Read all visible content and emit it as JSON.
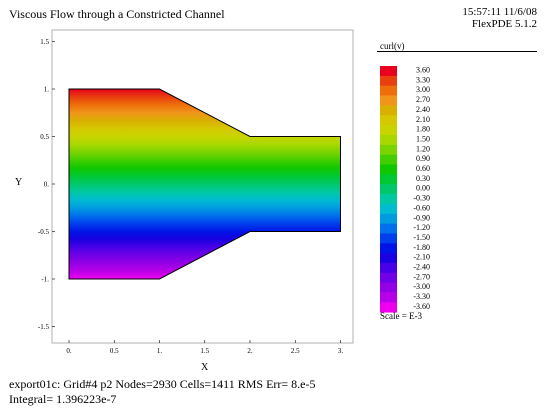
{
  "header": {
    "title": "Viscous Flow through a Constricted Channel",
    "timestamp": "15:57:11 11/6/08",
    "version": "FlexPDE 5.1.2"
  },
  "footer": {
    "line1": "export01c:  Grid#4  p2  Nodes=2930 Cells=1411 RMS Err= 8.e-5",
    "line2": "Integral=  1.396223e-7"
  },
  "chart_data": {
    "type": "heatmap",
    "xlabel": "X",
    "ylabel": "Y",
    "xlim": [
      -0.1,
      3.1
    ],
    "ylim": [
      -1.65,
      1.5
    ],
    "x_ticks": [
      "0.",
      "0.5",
      "1.",
      "1.5",
      "2.",
      "2.5",
      "3."
    ],
    "y_ticks": [
      "1.5",
      "1.",
      "0.5",
      "0.",
      "-0.5",
      "-1.",
      "-1.5"
    ],
    "x_tick_values": [
      0,
      0.5,
      1,
      1.5,
      2,
      2.5,
      3
    ],
    "y_tick_values": [
      1.5,
      1,
      0.5,
      0,
      -0.5,
      -1,
      -1.5
    ],
    "domain_outline": [
      [
        0,
        1
      ],
      [
        1,
        1
      ],
      [
        2,
        0.5
      ],
      [
        3,
        0.5
      ],
      [
        3,
        -0.5
      ],
      [
        2,
        -0.5
      ],
      [
        1,
        -1
      ],
      [
        0,
        -1
      ]
    ],
    "legend_title": "curl(v)",
    "legend_values": [
      "3.60",
      "3.30",
      "3.00",
      "2.70",
      "2.40",
      "2.10",
      "1.80",
      "1.50",
      "1.20",
      "0.90",
      "0.60",
      "0.30",
      "0.00",
      "-0.30",
      "-0.60",
      "-0.90",
      "-1.20",
      "-1.50",
      "-1.80",
      "-2.10",
      "-2.40",
      "-2.70",
      "-3.00",
      "-3.30",
      "-3.60"
    ],
    "legend_colors": [
      "#e8001e",
      "#e8400f",
      "#ee6f0a",
      "#f0951a",
      "#d9b000",
      "#d6c800",
      "#c8d400",
      "#a8d800",
      "#7ad400",
      "#42ce00",
      "#10c800",
      "#00c833",
      "#00c86a",
      "#00c8a3",
      "#00bcd0",
      "#009ce0",
      "#0070ec",
      "#0040ec",
      "#0014e6",
      "#1a00e0",
      "#4800e6",
      "#7000e6",
      "#9400e6",
      "#b800e8",
      "#ee00ee"
    ],
    "scale_note": "Scale = E-3"
  }
}
